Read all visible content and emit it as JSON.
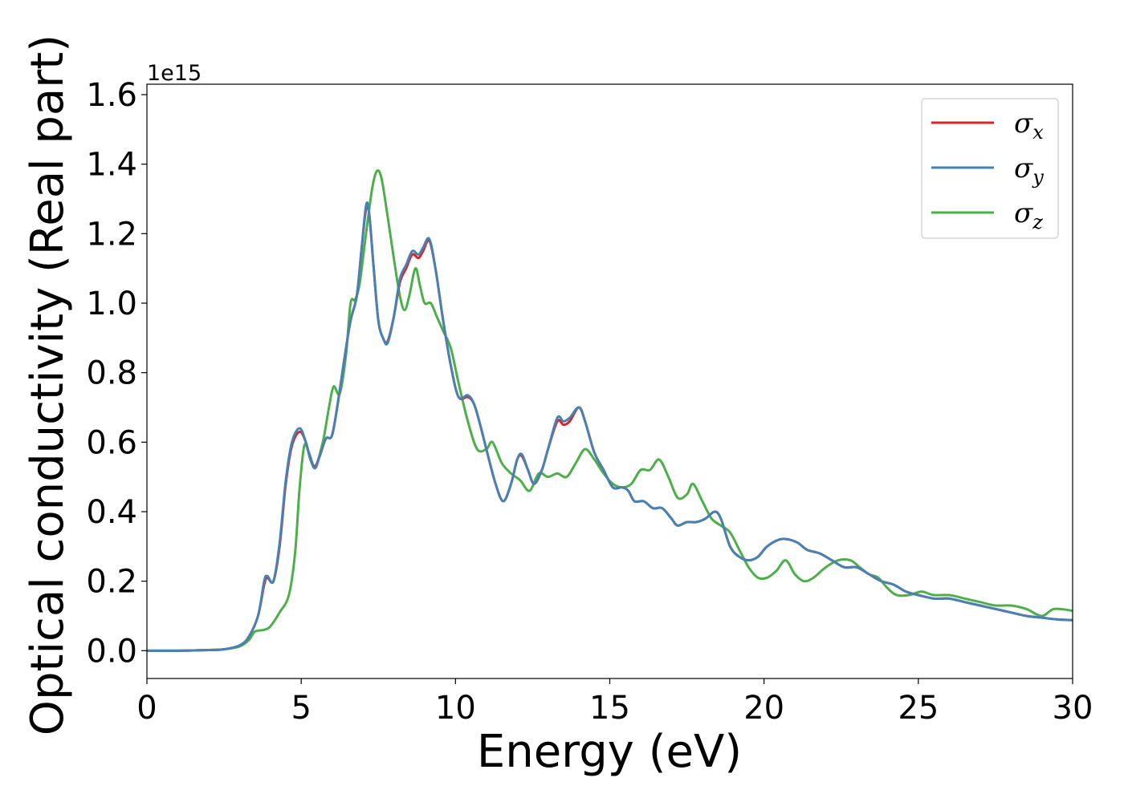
{
  "chart_data": {
    "type": "line",
    "title": "",
    "xlabel": "Energy (eV)",
    "ylabel": "Optical conductivity (Real part)",
    "y_offset_text": "1e15",
    "y_scale": 1000000000000000.0,
    "xlim": [
      0,
      30
    ],
    "ylim": [
      -0.08,
      1.63
    ],
    "x_ticks": [
      0,
      5,
      10,
      15,
      20,
      25,
      30
    ],
    "x_tick_labels": [
      "0",
      "5",
      "10",
      "15",
      "20",
      "25",
      "30"
    ],
    "y_ticks": [
      0.0,
      0.2,
      0.4,
      0.6,
      0.8,
      1.0,
      1.2,
      1.4,
      1.6
    ],
    "y_tick_labels": [
      "0.0",
      "0.2",
      "0.4",
      "0.6",
      "0.8",
      "1.0",
      "1.2",
      "1.4",
      "1.6"
    ],
    "grid": false,
    "legend_position": "top-right",
    "series": [
      {
        "name": "σx",
        "legend_symbol": "σ",
        "legend_subscript": "x",
        "color": "#d62728",
        "points": [
          [
            0,
            0
          ],
          [
            1,
            0
          ],
          [
            2,
            0.002
          ],
          [
            2.5,
            0.004
          ],
          [
            3,
            0.015
          ],
          [
            3.3,
            0.04
          ],
          [
            3.6,
            0.1
          ],
          [
            3.8,
            0.19
          ],
          [
            3.9,
            0.21
          ],
          [
            4.1,
            0.2
          ],
          [
            4.3,
            0.3
          ],
          [
            4.5,
            0.48
          ],
          [
            4.7,
            0.59
          ],
          [
            4.95,
            0.63
          ],
          [
            5.15,
            0.6
          ],
          [
            5.3,
            0.55
          ],
          [
            5.45,
            0.53
          ],
          [
            5.6,
            0.56
          ],
          [
            5.8,
            0.61
          ],
          [
            6.0,
            0.62
          ],
          [
            6.2,
            0.72
          ],
          [
            6.4,
            0.84
          ],
          [
            6.6,
            0.95
          ],
          [
            6.8,
            1.02
          ],
          [
            6.95,
            1.15
          ],
          [
            7.1,
            1.27
          ],
          [
            7.2,
            1.26
          ],
          [
            7.35,
            1.1
          ],
          [
            7.5,
            0.95
          ],
          [
            7.65,
            0.9
          ],
          [
            7.8,
            0.89
          ],
          [
            8.0,
            0.96
          ],
          [
            8.2,
            1.06
          ],
          [
            8.4,
            1.1
          ],
          [
            8.6,
            1.14
          ],
          [
            8.8,
            1.13
          ],
          [
            8.95,
            1.15
          ],
          [
            9.15,
            1.18
          ],
          [
            9.35,
            1.1
          ],
          [
            9.6,
            0.95
          ],
          [
            9.85,
            0.82
          ],
          [
            10.1,
            0.73
          ],
          [
            10.4,
            0.73
          ],
          [
            10.6,
            0.71
          ],
          [
            10.8,
            0.65
          ],
          [
            11.0,
            0.58
          ],
          [
            11.3,
            0.48
          ],
          [
            11.55,
            0.43
          ],
          [
            11.8,
            0.48
          ],
          [
            12.0,
            0.55
          ],
          [
            12.15,
            0.56
          ],
          [
            12.35,
            0.52
          ],
          [
            12.55,
            0.48
          ],
          [
            12.8,
            0.52
          ],
          [
            13.0,
            0.58
          ],
          [
            13.3,
            0.66
          ],
          [
            13.5,
            0.65
          ],
          [
            13.7,
            0.66
          ],
          [
            14.0,
            0.7
          ],
          [
            14.2,
            0.66
          ],
          [
            14.5,
            0.57
          ],
          [
            14.8,
            0.52
          ],
          [
            15.1,
            0.47
          ],
          [
            15.4,
            0.47
          ],
          [
            15.6,
            0.46
          ],
          [
            15.8,
            0.43
          ],
          [
            16.1,
            0.43
          ],
          [
            16.4,
            0.41
          ],
          [
            16.7,
            0.41
          ],
          [
            17.0,
            0.38
          ],
          [
            17.2,
            0.36
          ],
          [
            17.5,
            0.37
          ],
          [
            17.8,
            0.37
          ],
          [
            18.1,
            0.38
          ],
          [
            18.4,
            0.4
          ],
          [
            18.6,
            0.38
          ],
          [
            18.9,
            0.3
          ],
          [
            19.2,
            0.27
          ],
          [
            19.5,
            0.26
          ],
          [
            19.8,
            0.27
          ],
          [
            20.1,
            0.3
          ],
          [
            20.5,
            0.32
          ],
          [
            20.8,
            0.32
          ],
          [
            21.1,
            0.31
          ],
          [
            21.4,
            0.29
          ],
          [
            21.8,
            0.28
          ],
          [
            22.2,
            0.26
          ],
          [
            22.6,
            0.24
          ],
          [
            23.0,
            0.24
          ],
          [
            23.4,
            0.22
          ],
          [
            23.8,
            0.2
          ],
          [
            24.2,
            0.19
          ],
          [
            24.6,
            0.17
          ],
          [
            25.0,
            0.16
          ],
          [
            25.5,
            0.15
          ],
          [
            26.0,
            0.15
          ],
          [
            26.5,
            0.14
          ],
          [
            27.0,
            0.13
          ],
          [
            27.5,
            0.12
          ],
          [
            28.0,
            0.11
          ],
          [
            28.5,
            0.1
          ],
          [
            29.0,
            0.095
          ],
          [
            29.5,
            0.09
          ],
          [
            30,
            0.088
          ]
        ]
      },
      {
        "name": "σy",
        "legend_symbol": "σ",
        "legend_subscript": "y",
        "color": "#4682b4",
        "points": [
          [
            0,
            0
          ],
          [
            1,
            0
          ],
          [
            2,
            0.002
          ],
          [
            2.5,
            0.004
          ],
          [
            3,
            0.015
          ],
          [
            3.3,
            0.04
          ],
          [
            3.6,
            0.1
          ],
          [
            3.8,
            0.2
          ],
          [
            3.9,
            0.215
          ],
          [
            4.1,
            0.2
          ],
          [
            4.3,
            0.31
          ],
          [
            4.5,
            0.49
          ],
          [
            4.7,
            0.6
          ],
          [
            4.95,
            0.64
          ],
          [
            5.15,
            0.6
          ],
          [
            5.3,
            0.55
          ],
          [
            5.45,
            0.525
          ],
          [
            5.6,
            0.56
          ],
          [
            5.8,
            0.61
          ],
          [
            6.0,
            0.62
          ],
          [
            6.2,
            0.72
          ],
          [
            6.4,
            0.84
          ],
          [
            6.6,
            0.95
          ],
          [
            6.8,
            1.02
          ],
          [
            6.95,
            1.15
          ],
          [
            7.1,
            1.28
          ],
          [
            7.2,
            1.26
          ],
          [
            7.35,
            1.1
          ],
          [
            7.5,
            0.95
          ],
          [
            7.65,
            0.9
          ],
          [
            7.8,
            0.885
          ],
          [
            8.0,
            0.96
          ],
          [
            8.2,
            1.07
          ],
          [
            8.4,
            1.11
          ],
          [
            8.6,
            1.15
          ],
          [
            8.8,
            1.14
          ],
          [
            8.95,
            1.16
          ],
          [
            9.15,
            1.185
          ],
          [
            9.35,
            1.1
          ],
          [
            9.6,
            0.95
          ],
          [
            9.85,
            0.82
          ],
          [
            10.1,
            0.73
          ],
          [
            10.4,
            0.735
          ],
          [
            10.6,
            0.71
          ],
          [
            10.8,
            0.65
          ],
          [
            11.0,
            0.58
          ],
          [
            11.3,
            0.48
          ],
          [
            11.55,
            0.43
          ],
          [
            11.8,
            0.48
          ],
          [
            12.0,
            0.55
          ],
          [
            12.15,
            0.565
          ],
          [
            12.35,
            0.52
          ],
          [
            12.55,
            0.48
          ],
          [
            12.8,
            0.52
          ],
          [
            13.0,
            0.58
          ],
          [
            13.3,
            0.67
          ],
          [
            13.5,
            0.66
          ],
          [
            13.7,
            0.67
          ],
          [
            14.0,
            0.7
          ],
          [
            14.2,
            0.66
          ],
          [
            14.5,
            0.57
          ],
          [
            14.8,
            0.52
          ],
          [
            15.1,
            0.47
          ],
          [
            15.4,
            0.47
          ],
          [
            15.6,
            0.46
          ],
          [
            15.8,
            0.43
          ],
          [
            16.1,
            0.43
          ],
          [
            16.4,
            0.41
          ],
          [
            16.7,
            0.41
          ],
          [
            17.0,
            0.38
          ],
          [
            17.2,
            0.36
          ],
          [
            17.5,
            0.37
          ],
          [
            17.8,
            0.37
          ],
          [
            18.1,
            0.38
          ],
          [
            18.4,
            0.4
          ],
          [
            18.6,
            0.38
          ],
          [
            18.9,
            0.3
          ],
          [
            19.2,
            0.27
          ],
          [
            19.5,
            0.26
          ],
          [
            19.8,
            0.27
          ],
          [
            20.1,
            0.3
          ],
          [
            20.5,
            0.32
          ],
          [
            20.8,
            0.32
          ],
          [
            21.1,
            0.31
          ],
          [
            21.4,
            0.29
          ],
          [
            21.8,
            0.28
          ],
          [
            22.2,
            0.26
          ],
          [
            22.6,
            0.24
          ],
          [
            23.0,
            0.24
          ],
          [
            23.4,
            0.22
          ],
          [
            23.8,
            0.2
          ],
          [
            24.2,
            0.19
          ],
          [
            24.6,
            0.17
          ],
          [
            25.0,
            0.16
          ],
          [
            25.5,
            0.15
          ],
          [
            26.0,
            0.15
          ],
          [
            26.5,
            0.14
          ],
          [
            27.0,
            0.13
          ],
          [
            27.5,
            0.12
          ],
          [
            28.0,
            0.11
          ],
          [
            28.5,
            0.1
          ],
          [
            29.0,
            0.095
          ],
          [
            29.5,
            0.09
          ],
          [
            30,
            0.088
          ]
        ]
      },
      {
        "name": "σz",
        "legend_symbol": "σ",
        "legend_subscript": "z",
        "color": "#4daf4a",
        "points": [
          [
            0,
            0
          ],
          [
            1,
            0
          ],
          [
            2,
            0.002
          ],
          [
            2.5,
            0.004
          ],
          [
            3,
            0.012
          ],
          [
            3.3,
            0.03
          ],
          [
            3.5,
            0.055
          ],
          [
            3.8,
            0.06
          ],
          [
            4.0,
            0.07
          ],
          [
            4.3,
            0.11
          ],
          [
            4.6,
            0.16
          ],
          [
            4.8,
            0.28
          ],
          [
            4.95,
            0.47
          ],
          [
            5.1,
            0.59
          ],
          [
            5.25,
            0.57
          ],
          [
            5.45,
            0.53
          ],
          [
            5.7,
            0.6
          ],
          [
            5.9,
            0.7
          ],
          [
            6.05,
            0.76
          ],
          [
            6.25,
            0.74
          ],
          [
            6.45,
            0.85
          ],
          [
            6.6,
            1.0
          ],
          [
            6.75,
            1.01
          ],
          [
            6.9,
            1.06
          ],
          [
            7.1,
            1.2
          ],
          [
            7.3,
            1.33
          ],
          [
            7.45,
            1.38
          ],
          [
            7.6,
            1.36
          ],
          [
            7.8,
            1.25
          ],
          [
            8.0,
            1.13
          ],
          [
            8.2,
            1.02
          ],
          [
            8.35,
            0.98
          ],
          [
            8.5,
            1.02
          ],
          [
            8.7,
            1.1
          ],
          [
            8.85,
            1.05
          ],
          [
            9.0,
            1.0
          ],
          [
            9.2,
            1.0
          ],
          [
            9.4,
            0.96
          ],
          [
            9.6,
            0.92
          ],
          [
            9.85,
            0.87
          ],
          [
            10.1,
            0.77
          ],
          [
            10.4,
            0.66
          ],
          [
            10.7,
            0.58
          ],
          [
            11.0,
            0.58
          ],
          [
            11.2,
            0.6
          ],
          [
            11.5,
            0.54
          ],
          [
            11.8,
            0.51
          ],
          [
            12.1,
            0.49
          ],
          [
            12.4,
            0.46
          ],
          [
            12.7,
            0.51
          ],
          [
            13.0,
            0.5
          ],
          [
            13.3,
            0.51
          ],
          [
            13.6,
            0.5
          ],
          [
            13.9,
            0.54
          ],
          [
            14.2,
            0.58
          ],
          [
            14.5,
            0.55
          ],
          [
            14.8,
            0.51
          ],
          [
            15.1,
            0.48
          ],
          [
            15.4,
            0.47
          ],
          [
            15.7,
            0.48
          ],
          [
            16.0,
            0.52
          ],
          [
            16.3,
            0.52
          ],
          [
            16.6,
            0.55
          ],
          [
            16.9,
            0.5
          ],
          [
            17.2,
            0.44
          ],
          [
            17.5,
            0.45
          ],
          [
            17.7,
            0.48
          ],
          [
            18.0,
            0.43
          ],
          [
            18.3,
            0.38
          ],
          [
            18.6,
            0.36
          ],
          [
            18.9,
            0.34
          ],
          [
            19.2,
            0.29
          ],
          [
            19.5,
            0.24
          ],
          [
            19.8,
            0.21
          ],
          [
            20.1,
            0.21
          ],
          [
            20.4,
            0.23
          ],
          [
            20.7,
            0.26
          ],
          [
            21.0,
            0.22
          ],
          [
            21.3,
            0.2
          ],
          [
            21.6,
            0.21
          ],
          [
            22.0,
            0.24
          ],
          [
            22.4,
            0.26
          ],
          [
            22.8,
            0.26
          ],
          [
            23.1,
            0.24
          ],
          [
            23.4,
            0.22
          ],
          [
            23.7,
            0.21
          ],
          [
            24.0,
            0.18
          ],
          [
            24.3,
            0.16
          ],
          [
            24.7,
            0.16
          ],
          [
            25.1,
            0.17
          ],
          [
            25.5,
            0.16
          ],
          [
            26.0,
            0.16
          ],
          [
            26.5,
            0.15
          ],
          [
            27.0,
            0.14
          ],
          [
            27.5,
            0.13
          ],
          [
            28.0,
            0.13
          ],
          [
            28.5,
            0.12
          ],
          [
            29.0,
            0.1
          ],
          [
            29.4,
            0.12
          ],
          [
            30,
            0.115
          ]
        ]
      }
    ]
  }
}
